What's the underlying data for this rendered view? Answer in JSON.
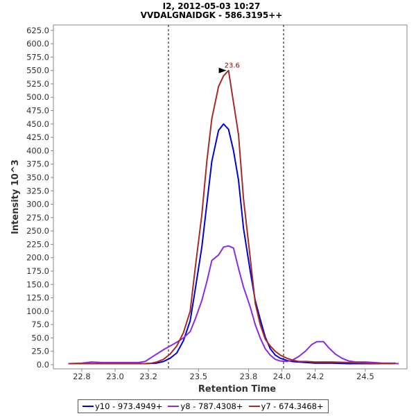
{
  "chart_data": {
    "type": "line",
    "title_line1": "I2, 2012-05-03 10:27",
    "title_line2": "VVDALGNAIDGK - 586.3195++",
    "xlabel": "Retention Time",
    "ylabel": "Intensity 10^3",
    "xlim": [
      22.63,
      24.75
    ],
    "ylim": [
      0,
      625
    ],
    "xticks": [
      22.8,
      23.0,
      23.2,
      23.5,
      23.8,
      24.0,
      24.2,
      24.5
    ],
    "xtick_labels": [
      "22.8",
      "23.0",
      "23.2",
      "23.5",
      "23.8",
      "24.0",
      "24.2",
      "24.5"
    ],
    "yticks": [
      0,
      25,
      50,
      75,
      100,
      125,
      150,
      175,
      200,
      225,
      250,
      275,
      300,
      325,
      350,
      375,
      400,
      425,
      450,
      475,
      500,
      525,
      550,
      575,
      600,
      625
    ],
    "ytick_labels": [
      "0.0",
      "25.0",
      "50.0",
      "75.0",
      "100.0",
      "125.0",
      "150.0",
      "175.0",
      "200.0",
      "225.0",
      "250.0",
      "275.0",
      "300.0",
      "325.0",
      "350.0",
      "375.0",
      "400.0",
      "425.0",
      "450.0",
      "475.0",
      "500.0",
      "525.0",
      "550.0",
      "575.0",
      "600.0",
      "625.0"
    ],
    "integration_boundaries": [
      23.32,
      24.01
    ],
    "peak_annotation": {
      "label": "23.6",
      "x": 23.68,
      "y": 550,
      "color": "#8b0000"
    },
    "series": [
      {
        "name": "y10 - 973.4949+",
        "color": "#0000d8",
        "points": [
          [
            22.72,
            2
          ],
          [
            22.9,
            2
          ],
          [
            23.1,
            2
          ],
          [
            23.18,
            2
          ],
          [
            23.25,
            3
          ],
          [
            23.29,
            6
          ],
          [
            23.33,
            12
          ],
          [
            23.37,
            22
          ],
          [
            23.41,
            45
          ],
          [
            23.45,
            82
          ],
          [
            23.48,
            140
          ],
          [
            23.52,
            220
          ],
          [
            23.55,
            300
          ],
          [
            23.58,
            380
          ],
          [
            23.62,
            438
          ],
          [
            23.65,
            450
          ],
          [
            23.68,
            440
          ],
          [
            23.71,
            400
          ],
          [
            23.74,
            345
          ],
          [
            23.77,
            255
          ],
          [
            23.81,
            175
          ],
          [
            23.84,
            120
          ],
          [
            23.87,
            85
          ],
          [
            23.9,
            52
          ],
          [
            23.93,
            30
          ],
          [
            23.96,
            18
          ],
          [
            23.99,
            12
          ],
          [
            24.03,
            8
          ],
          [
            24.06,
            6
          ],
          [
            24.1,
            5
          ],
          [
            24.2,
            3
          ],
          [
            24.3,
            3
          ],
          [
            24.4,
            2
          ],
          [
            24.5,
            2
          ],
          [
            24.6,
            2
          ],
          [
            24.68,
            3
          ]
        ]
      },
      {
        "name": "y8 - 787.4308+",
        "color": "#8a2be2",
        "points": [
          [
            22.72,
            2
          ],
          [
            22.8,
            3
          ],
          [
            22.86,
            5
          ],
          [
            22.92,
            4
          ],
          [
            23.0,
            4
          ],
          [
            23.1,
            4
          ],
          [
            23.14,
            4
          ],
          [
            23.18,
            6
          ],
          [
            23.22,
            14
          ],
          [
            23.26,
            22
          ],
          [
            23.29,
            28
          ],
          [
            23.33,
            35
          ],
          [
            23.37,
            42
          ],
          [
            23.41,
            50
          ],
          [
            23.45,
            62
          ],
          [
            23.48,
            85
          ],
          [
            23.52,
            120
          ],
          [
            23.55,
            155
          ],
          [
            23.58,
            195
          ],
          [
            23.62,
            205
          ],
          [
            23.65,
            220
          ],
          [
            23.68,
            222
          ],
          [
            23.71,
            218
          ],
          [
            23.74,
            180
          ],
          [
            23.77,
            145
          ],
          [
            23.81,
            108
          ],
          [
            23.84,
            75
          ],
          [
            23.87,
            50
          ],
          [
            23.9,
            30
          ],
          [
            23.93,
            18
          ],
          [
            23.96,
            10
          ],
          [
            23.99,
            7
          ],
          [
            24.03,
            6
          ],
          [
            24.06,
            8
          ],
          [
            24.1,
            15
          ],
          [
            24.14,
            25
          ],
          [
            24.18,
            38
          ],
          [
            24.21,
            43
          ],
          [
            24.25,
            43
          ],
          [
            24.28,
            32
          ],
          [
            24.32,
            20
          ],
          [
            24.36,
            12
          ],
          [
            24.4,
            7
          ],
          [
            24.44,
            5
          ],
          [
            24.5,
            5
          ],
          [
            24.55,
            4
          ],
          [
            24.6,
            3
          ],
          [
            24.65,
            3
          ],
          [
            24.7,
            2
          ]
        ]
      },
      {
        "name": "y7 - 674.3468+",
        "color": "#a52a2a",
        "points": [
          [
            22.72,
            2
          ],
          [
            22.9,
            2
          ],
          [
            23.1,
            2
          ],
          [
            23.18,
            2
          ],
          [
            23.22,
            3
          ],
          [
            23.25,
            5
          ],
          [
            23.29,
            10
          ],
          [
            23.33,
            20
          ],
          [
            23.37,
            35
          ],
          [
            23.41,
            60
          ],
          [
            23.45,
            100
          ],
          [
            23.48,
            180
          ],
          [
            23.52,
            280
          ],
          [
            23.55,
            380
          ],
          [
            23.58,
            460
          ],
          [
            23.62,
            520
          ],
          [
            23.65,
            540
          ],
          [
            23.68,
            550
          ],
          [
            23.71,
            490
          ],
          [
            23.74,
            430
          ],
          [
            23.77,
            310
          ],
          [
            23.81,
            200
          ],
          [
            23.84,
            115
          ],
          [
            23.87,
            75
          ],
          [
            23.9,
            48
          ],
          [
            23.93,
            35
          ],
          [
            23.96,
            25
          ],
          [
            23.99,
            18
          ],
          [
            24.03,
            12
          ],
          [
            24.06,
            9
          ],
          [
            24.1,
            6
          ],
          [
            24.15,
            6
          ],
          [
            24.2,
            5
          ],
          [
            24.3,
            5
          ],
          [
            24.4,
            4
          ],
          [
            24.5,
            3
          ],
          [
            24.6,
            2
          ],
          [
            24.68,
            2
          ]
        ]
      }
    ]
  }
}
